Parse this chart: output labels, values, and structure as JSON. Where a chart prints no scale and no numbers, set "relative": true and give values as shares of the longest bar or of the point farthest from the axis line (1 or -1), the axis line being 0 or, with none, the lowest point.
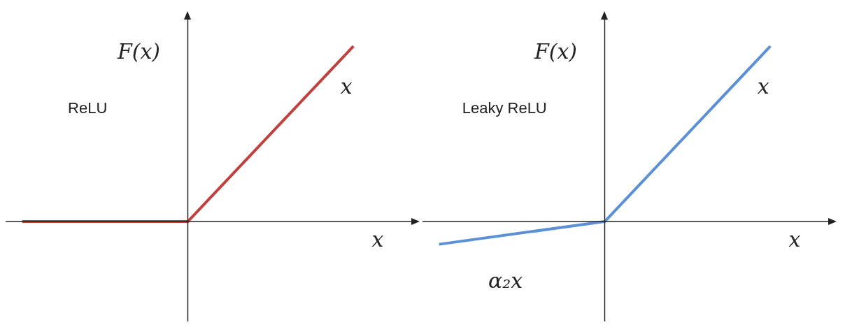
{
  "chart_data": [
    {
      "type": "line",
      "title": "ReLU",
      "xlabel": "x",
      "ylabel": "F(x)",
      "relative": true,
      "categories": [
        null,
        null,
        null
      ],
      "series": [
        {
          "color": "#c0403e",
          "values": [
            0,
            0,
            1
          ]
        }
      ],
      "annotations": [
        "x"
      ],
      "grid": false,
      "legend": false,
      "marker": "none",
      "line_style": "solid"
    },
    {
      "type": "line",
      "title": "Leaky ReLU",
      "xlabel": "x",
      "ylabel": "F(x)",
      "relative": true,
      "categories": [
        null,
        null,
        null
      ],
      "series": [
        {
          "color": "#5b8fd6",
          "values": [
            -0.13,
            0,
            1
          ]
        }
      ],
      "annotations": [
        "x",
        "α₂x"
      ],
      "grid": false,
      "legend": false,
      "marker": "none",
      "line_style": "solid"
    }
  ]
}
